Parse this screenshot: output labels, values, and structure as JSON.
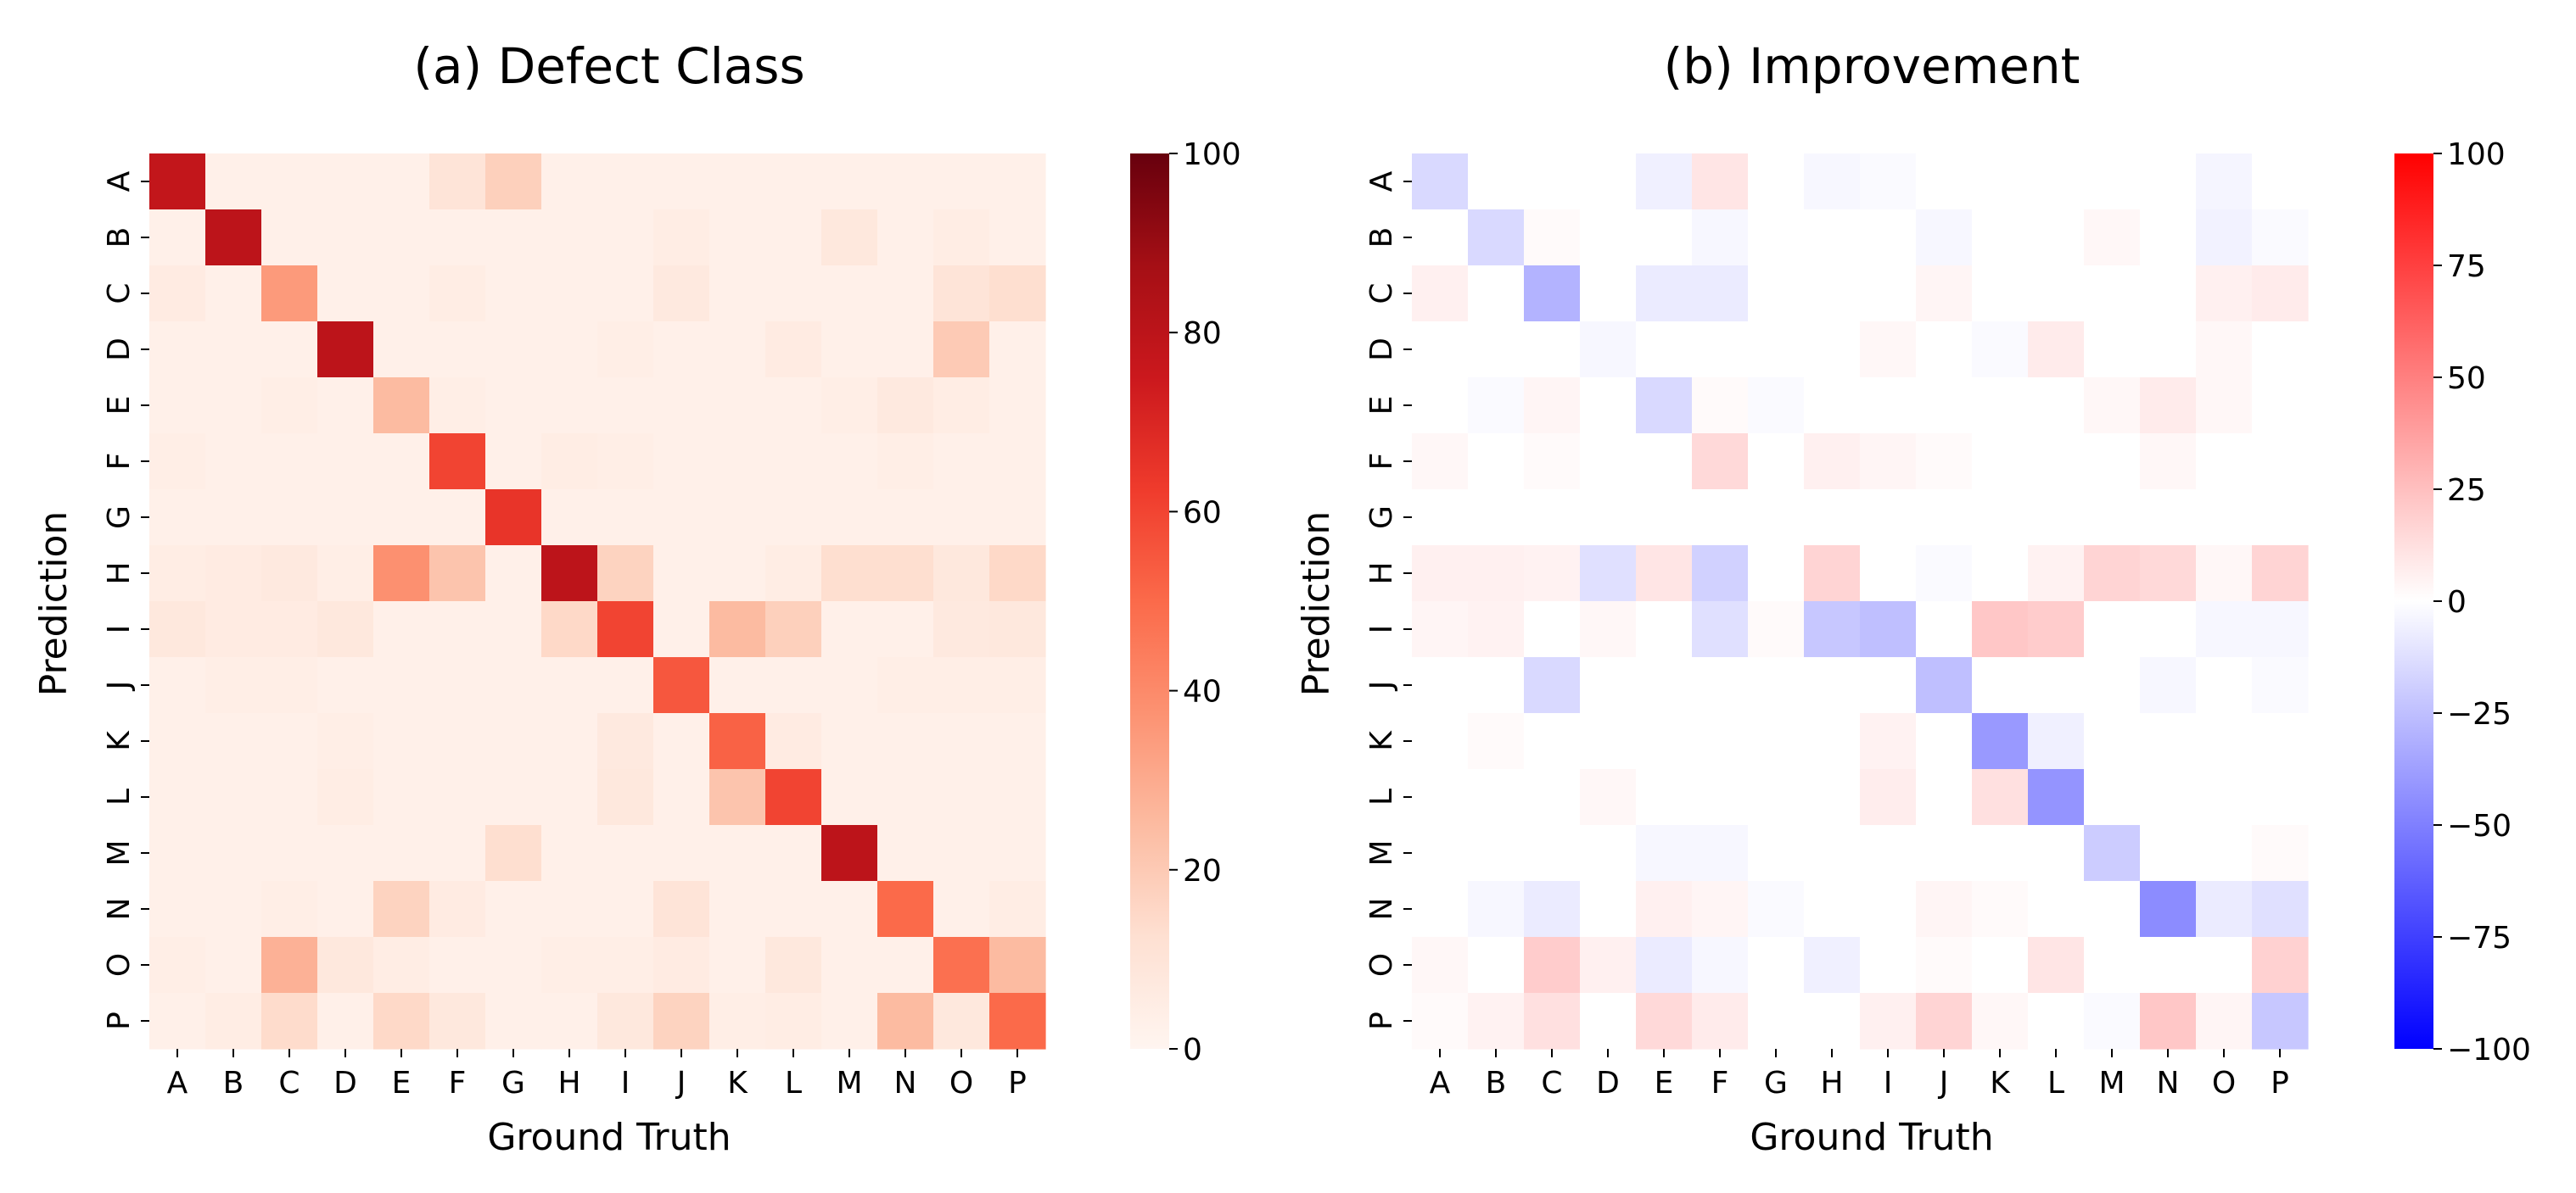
{
  "chart_data": [
    {
      "type": "heatmap",
      "title": "(a) Defect Class",
      "xlabel": "Ground Truth",
      "ylabel": "Prediction",
      "categories": [
        "A",
        "B",
        "C",
        "D",
        "E",
        "F",
        "G",
        "H",
        "I",
        "J",
        "K",
        "L",
        "M",
        "N",
        "O",
        "P"
      ],
      "colormap": "Reds",
      "vmin": 0,
      "vmax": 100,
      "colorbar_ticks": [
        0,
        20,
        40,
        60,
        80,
        100
      ],
      "colorbar_tick_labels": [
        "0",
        "20",
        "40",
        "60",
        "80",
        "100"
      ],
      "values": [
        [
          78,
          3,
          3,
          3,
          3,
          10,
          18,
          3,
          3,
          3,
          3,
          3,
          3,
          3,
          3,
          3
        ],
        [
          3,
          80,
          3,
          3,
          3,
          3,
          3,
          3,
          3,
          5,
          3,
          3,
          8,
          3,
          5,
          3
        ],
        [
          6,
          3,
          35,
          3,
          3,
          5,
          3,
          3,
          3,
          7,
          3,
          3,
          3,
          3,
          10,
          13
        ],
        [
          3,
          3,
          3,
          80,
          3,
          3,
          3,
          3,
          4,
          3,
          3,
          6,
          3,
          3,
          20,
          3
        ],
        [
          3,
          3,
          4,
          3,
          25,
          4,
          3,
          3,
          3,
          3,
          3,
          3,
          4,
          7,
          5,
          3
        ],
        [
          4,
          3,
          3,
          3,
          3,
          60,
          3,
          5,
          4,
          3,
          3,
          3,
          3,
          4,
          3,
          3
        ],
        [
          3,
          3,
          3,
          3,
          3,
          3,
          65,
          3,
          3,
          3,
          3,
          3,
          3,
          3,
          3,
          3
        ],
        [
          5,
          6,
          7,
          4,
          38,
          22,
          3,
          80,
          17,
          3,
          3,
          5,
          13,
          13,
          8,
          15
        ],
        [
          8,
          6,
          6,
          8,
          3,
          3,
          3,
          15,
          60,
          3,
          25,
          18,
          3,
          3,
          7,
          8
        ],
        [
          3,
          4,
          4,
          3,
          3,
          3,
          3,
          3,
          3,
          55,
          3,
          3,
          3,
          4,
          4,
          4
        ],
        [
          3,
          3,
          3,
          4,
          3,
          3,
          3,
          3,
          7,
          3,
          52,
          6,
          3,
          3,
          3,
          3
        ],
        [
          3,
          3,
          3,
          5,
          3,
          3,
          3,
          3,
          8,
          3,
          22,
          60,
          3,
          3,
          3,
          3
        ],
        [
          3,
          3,
          3,
          3,
          3,
          3,
          13,
          3,
          3,
          3,
          3,
          3,
          80,
          3,
          3,
          3
        ],
        [
          3,
          3,
          4,
          3,
          17,
          6,
          3,
          3,
          3,
          10,
          3,
          3,
          3,
          50,
          3,
          5
        ],
        [
          4,
          3,
          28,
          8,
          5,
          3,
          3,
          4,
          4,
          6,
          3,
          8,
          3,
          3,
          48,
          25
        ],
        [
          3,
          5,
          14,
          3,
          15,
          8,
          3,
          3,
          8,
          17,
          4,
          5,
          3,
          25,
          8,
          50
        ]
      ]
    },
    {
      "type": "heatmap",
      "title": "(b) Improvement",
      "xlabel": "Ground Truth",
      "ylabel": "Prediction",
      "categories": [
        "A",
        "B",
        "C",
        "D",
        "E",
        "F",
        "G",
        "H",
        "I",
        "J",
        "K",
        "L",
        "M",
        "N",
        "O",
        "P"
      ],
      "colormap": "bwr",
      "vmin": -100,
      "vmax": 100,
      "colorbar_ticks": [
        -100,
        -75,
        -50,
        -25,
        0,
        25,
        50,
        75,
        100
      ],
      "colorbar_tick_labels": [
        "−100",
        "−75",
        "−50",
        "−25",
        "0",
        "25",
        "50",
        "75",
        "100"
      ],
      "values": [
        [
          -15,
          0,
          0,
          0,
          -6,
          10,
          0,
          -3,
          -2,
          0,
          0,
          0,
          0,
          0,
          -4,
          0
        ],
        [
          0,
          -15,
          2,
          0,
          0,
          -3,
          0,
          0,
          0,
          -3,
          0,
          0,
          3,
          0,
          -5,
          -2
        ],
        [
          6,
          0,
          -30,
          0,
          -8,
          -8,
          0,
          0,
          0,
          4,
          0,
          0,
          0,
          0,
          6,
          8
        ],
        [
          0,
          0,
          0,
          -3,
          0,
          0,
          0,
          0,
          3,
          0,
          -2,
          8,
          0,
          0,
          3,
          0
        ],
        [
          0,
          -2,
          4,
          0,
          -15,
          2,
          -2,
          0,
          0,
          0,
          0,
          0,
          3,
          8,
          3,
          0
        ],
        [
          3,
          0,
          2,
          0,
          0,
          15,
          0,
          6,
          4,
          2,
          0,
          0,
          0,
          3,
          0,
          0
        ],
        [
          0,
          0,
          0,
          0,
          0,
          0,
          0,
          0,
          0,
          0,
          0,
          0,
          0,
          0,
          0,
          0
        ],
        [
          6,
          6,
          5,
          -12,
          10,
          -18,
          0,
          17,
          0,
          -2,
          0,
          5,
          17,
          15,
          3,
          17
        ],
        [
          4,
          5,
          0,
          3,
          0,
          -12,
          2,
          -22,
          -25,
          0,
          22,
          20,
          0,
          0,
          -3,
          -3
        ],
        [
          0,
          0,
          -15,
          0,
          0,
          0,
          0,
          0,
          0,
          -25,
          0,
          0,
          0,
          -3,
          0,
          -2
        ],
        [
          0,
          2,
          0,
          0,
          0,
          0,
          0,
          0,
          5,
          0,
          -40,
          -6,
          0,
          0,
          0,
          0
        ],
        [
          0,
          0,
          0,
          3,
          0,
          0,
          0,
          0,
          7,
          0,
          12,
          -42,
          0,
          0,
          0,
          0
        ],
        [
          0,
          0,
          0,
          0,
          -3,
          -3,
          0,
          0,
          0,
          0,
          0,
          0,
          -20,
          0,
          0,
          2
        ],
        [
          0,
          -3,
          -8,
          0,
          6,
          4,
          -2,
          0,
          0,
          4,
          2,
          0,
          0,
          -45,
          -8,
          -12
        ],
        [
          3,
          0,
          20,
          6,
          -8,
          -3,
          0,
          -6,
          0,
          2,
          0,
          10,
          0,
          0,
          0,
          18
        ],
        [
          2,
          5,
          12,
          0,
          15,
          8,
          0,
          0,
          6,
          17,
          3,
          0,
          -2,
          22,
          4,
          -22
        ]
      ]
    }
  ]
}
